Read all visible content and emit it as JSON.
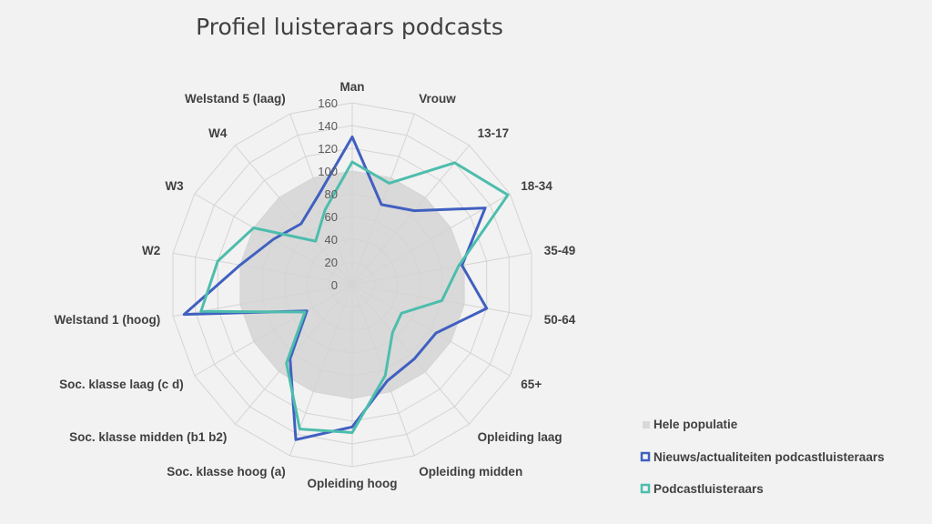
{
  "chart_data": {
    "type": "radar",
    "title": "Profiel luisteraars podcasts",
    "categories": [
      "Man",
      "Vrouw",
      "13-17",
      "18-34",
      "35-49",
      "50-64",
      "65+",
      "Opleiding laag",
      "Opleiding midden",
      "Opleiding hoog",
      "Soc. klasse hoog (a)",
      "Soc. klasse midden (b1 b2)",
      "Soc. klasse laag (c d)",
      "Welstand 1 (hoog)",
      "W2",
      "W3",
      "W4",
      "Welstand 5 (laag)"
    ],
    "rlim": [
      0,
      160
    ],
    "ticks": [
      "0",
      "20",
      "40",
      "60",
      "80",
      "100",
      "120",
      "140",
      "160"
    ],
    "series": [
      {
        "name": "Hele populatie",
        "color": "#d9d9d9",
        "values": [
          100,
          100,
          100,
          100,
          100,
          100,
          100,
          100,
          100,
          100,
          100,
          100,
          100,
          100,
          100,
          100,
          100,
          100
        ]
      },
      {
        "name": "Nieuws/actualiteiten podcastluisteraars",
        "color": "#4060c0",
        "values": [
          130,
          75,
          85,
          135,
          98,
          120,
          85,
          85,
          90,
          125,
          145,
          85,
          46,
          150,
          100,
          80,
          70,
          85
        ]
      },
      {
        "name": "Podcastluisteraars",
        "color": "#4dbdad",
        "values": [
          108,
          95,
          140,
          158,
          95,
          80,
          50,
          55,
          85,
          130,
          135,
          90,
          48,
          135,
          120,
          100,
          50,
          70
        ]
      }
    ],
    "legend": "right",
    "grid": true
  }
}
